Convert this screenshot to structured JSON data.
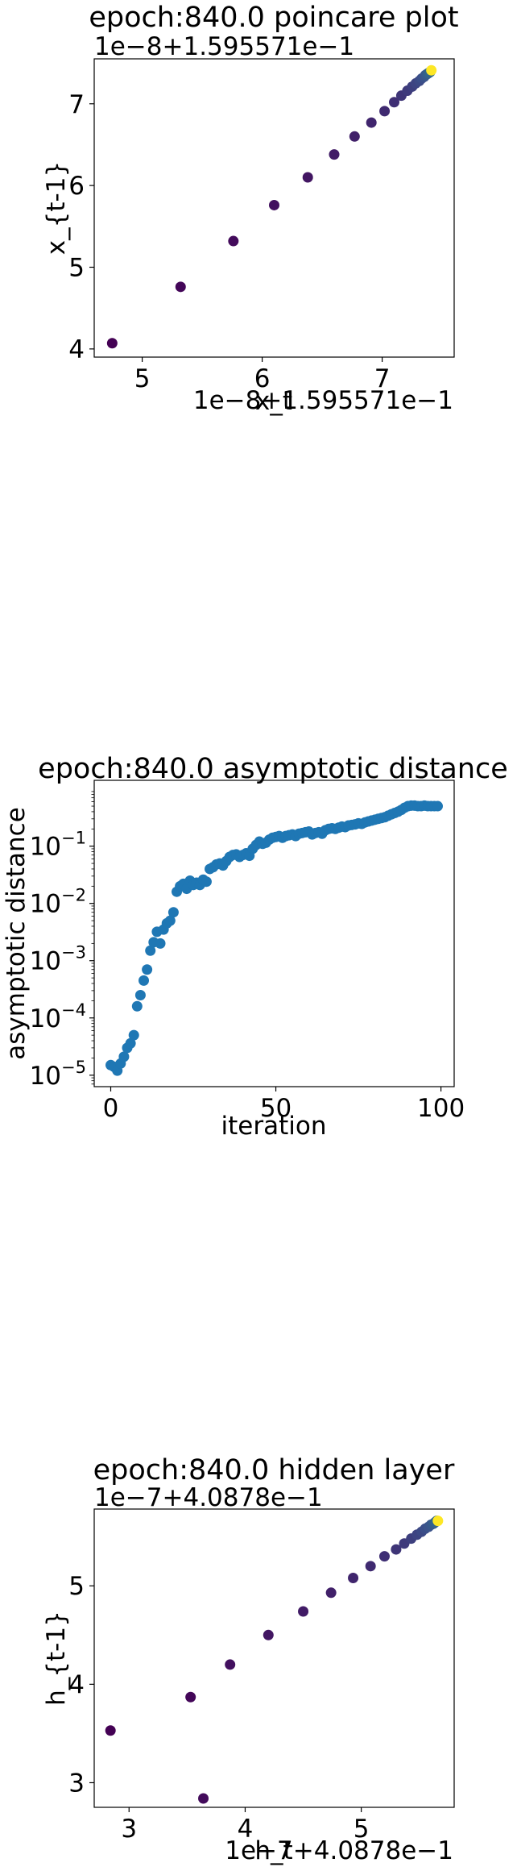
{
  "chart_data": [
    {
      "type": "scatter",
      "title": "epoch:840.0 poincare plot",
      "xlabel": "x_t",
      "ylabel": "x_{t-1}",
      "x_offset_text": "1e−8+1.595571e−1",
      "y_offset_text": "1e−8+1.595571e−1",
      "xlim": [
        4.6,
        7.6
      ],
      "ylim": [
        3.9,
        7.55
      ],
      "xticks": [
        5,
        6,
        7
      ],
      "xtick_labels": [
        "5",
        "6",
        "7"
      ],
      "yticks": [
        4,
        5,
        6,
        7
      ],
      "ytick_labels": [
        "4",
        "5",
        "6",
        "7"
      ],
      "colormap": "viridis",
      "x": [
        4.75,
        5.32,
        5.76,
        6.1,
        6.38,
        6.6,
        6.77,
        6.91,
        7.02,
        7.1,
        7.16,
        7.21,
        7.25,
        7.28,
        7.31,
        7.33,
        7.35,
        7.36,
        7.37,
        7.38,
        7.39,
        7.4,
        7.41
      ],
      "y": [
        4.07,
        4.76,
        5.32,
        5.76,
        6.1,
        6.38,
        6.6,
        6.77,
        6.91,
        7.02,
        7.1,
        7.16,
        7.21,
        7.25,
        7.28,
        7.31,
        7.33,
        7.35,
        7.36,
        7.37,
        7.38,
        7.39,
        7.41
      ]
    },
    {
      "type": "scatter",
      "title": "epoch:840.0 asymptotic distance",
      "xlabel": "iteration",
      "ylabel": "asymptotic distance",
      "yscale": "log",
      "xlim": [
        -5,
        104
      ],
      "ylim_exp": [
        -5.2,
        0.15
      ],
      "xticks": [
        0,
        50,
        100
      ],
      "xtick_labels": [
        "0",
        "50",
        "100"
      ],
      "yticks_exp": [
        -5,
        -4,
        -3,
        -2,
        -1
      ],
      "ytick_bases": [
        "10",
        "10",
        "10",
        "10",
        "10"
      ],
      "ytick_exps": [
        "−5",
        "−4",
        "−3",
        "−2",
        "−1"
      ],
      "color": "#1f77b4",
      "x": [
        0,
        1,
        2,
        3,
        4,
        5,
        6,
        7,
        8,
        9,
        10,
        11,
        12,
        13,
        14,
        15,
        16,
        17,
        18,
        19,
        20,
        21,
        22,
        23,
        24,
        25,
        26,
        27,
        28,
        29,
        30,
        31,
        32,
        33,
        34,
        35,
        36,
        37,
        38,
        39,
        40,
        41,
        42,
        43,
        44,
        45,
        46,
        47,
        48,
        49,
        50,
        51,
        52,
        53,
        54,
        55,
        56,
        57,
        58,
        59,
        60,
        61,
        62,
        63,
        64,
        65,
        66,
        67,
        68,
        69,
        70,
        71,
        72,
        73,
        74,
        75,
        76,
        77,
        78,
        79,
        80,
        81,
        82,
        83,
        84,
        85,
        86,
        87,
        88,
        89,
        90,
        91,
        92,
        93,
        94,
        95,
        96,
        97,
        98,
        99
      ],
      "y": [
        1.5e-05,
        1.4e-05,
        1.2e-05,
        1.6e-05,
        2.1e-05,
        3e-05,
        3.6e-05,
        5e-05,
        0.00016,
        0.00025,
        0.00045,
        0.0007,
        0.0015,
        0.0021,
        0.0032,
        0.002,
        0.0035,
        0.0045,
        0.005,
        0.007,
        0.016,
        0.02,
        0.022,
        0.018,
        0.025,
        0.021,
        0.023,
        0.021,
        0.026,
        0.024,
        0.04,
        0.043,
        0.048,
        0.05,
        0.046,
        0.055,
        0.065,
        0.07,
        0.072,
        0.065,
        0.07,
        0.075,
        0.068,
        0.09,
        0.105,
        0.12,
        0.11,
        0.115,
        0.13,
        0.14,
        0.145,
        0.15,
        0.14,
        0.15,
        0.155,
        0.16,
        0.15,
        0.165,
        0.17,
        0.175,
        0.18,
        0.16,
        0.17,
        0.175,
        0.165,
        0.19,
        0.2,
        0.205,
        0.2,
        0.21,
        0.22,
        0.215,
        0.23,
        0.235,
        0.24,
        0.25,
        0.245,
        0.26,
        0.27,
        0.28,
        0.29,
        0.3,
        0.31,
        0.32,
        0.34,
        0.36,
        0.38,
        0.4,
        0.43,
        0.47,
        0.5,
        0.51,
        0.51,
        0.5,
        0.5,
        0.51,
        0.5,
        0.5,
        0.5,
        0.5
      ]
    },
    {
      "type": "scatter",
      "title": "epoch:840.0 hidden layer",
      "xlabel": "h_t",
      "ylabel": "h_{t-1}",
      "x_offset_text": "1e−7+4.0878e−1",
      "y_offset_text": "1e−7+4.0878e−1",
      "xlim": [
        2.7,
        5.8
      ],
      "ylim": [
        2.75,
        5.78
      ],
      "xticks": [
        3,
        4,
        5
      ],
      "xtick_labels": [
        "3",
        "4",
        "5"
      ],
      "yticks": [
        3,
        4,
        5
      ],
      "ytick_labels": [
        "3",
        "4",
        "5"
      ],
      "colormap": "viridis",
      "x": [
        2.84,
        3.53,
        3.64,
        3.87,
        4.2,
        4.5,
        4.74,
        4.93,
        5.08,
        5.2,
        5.3,
        5.37,
        5.43,
        5.48,
        5.52,
        5.55,
        5.58,
        5.6,
        5.62,
        5.63,
        5.64,
        5.65,
        5.66
      ],
      "y": [
        3.53,
        3.87,
        2.84,
        4.2,
        4.5,
        4.74,
        4.93,
        5.08,
        5.2,
        5.3,
        5.37,
        5.43,
        5.48,
        5.52,
        5.55,
        5.58,
        5.6,
        5.62,
        5.63,
        5.64,
        5.65,
        5.66,
        5.66
      ]
    }
  ]
}
